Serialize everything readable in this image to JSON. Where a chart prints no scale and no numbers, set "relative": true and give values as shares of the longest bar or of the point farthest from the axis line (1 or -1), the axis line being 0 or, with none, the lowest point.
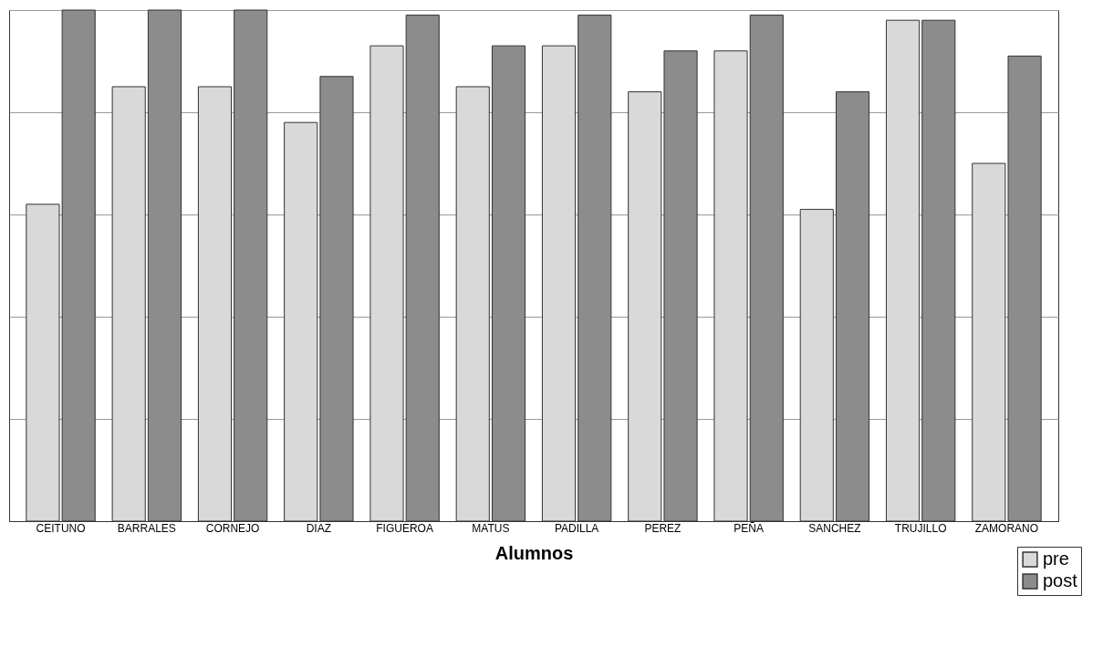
{
  "chart_data": {
    "type": "bar",
    "relative": true,
    "xlabel": "Alumnos",
    "grid": "y",
    "legend": "bottom right",
    "categories": [
      "CEITUNO",
      "BARRALES",
      "CORNEJO",
      "DIAZ",
      "FIGUEROA",
      "MATUS",
      "PADILLA",
      "PEREZ",
      "PEÑA",
      "SANCHEZ",
      "TRUJILLO",
      "ZAMORANO"
    ],
    "series": [
      {
        "name": "pre",
        "color": "#d9d9d9",
        "values": [
          0.62,
          0.85,
          0.85,
          0.78,
          0.93,
          0.85,
          0.93,
          0.84,
          0.92,
          0.61,
          0.98,
          0.7
        ]
      },
      {
        "name": "post",
        "color": "#8c8c8c",
        "values": [
          1.0,
          1.0,
          1.0,
          0.87,
          0.99,
          0.93,
          0.99,
          0.92,
          0.99,
          0.84,
          0.98,
          0.91
        ]
      }
    ]
  }
}
